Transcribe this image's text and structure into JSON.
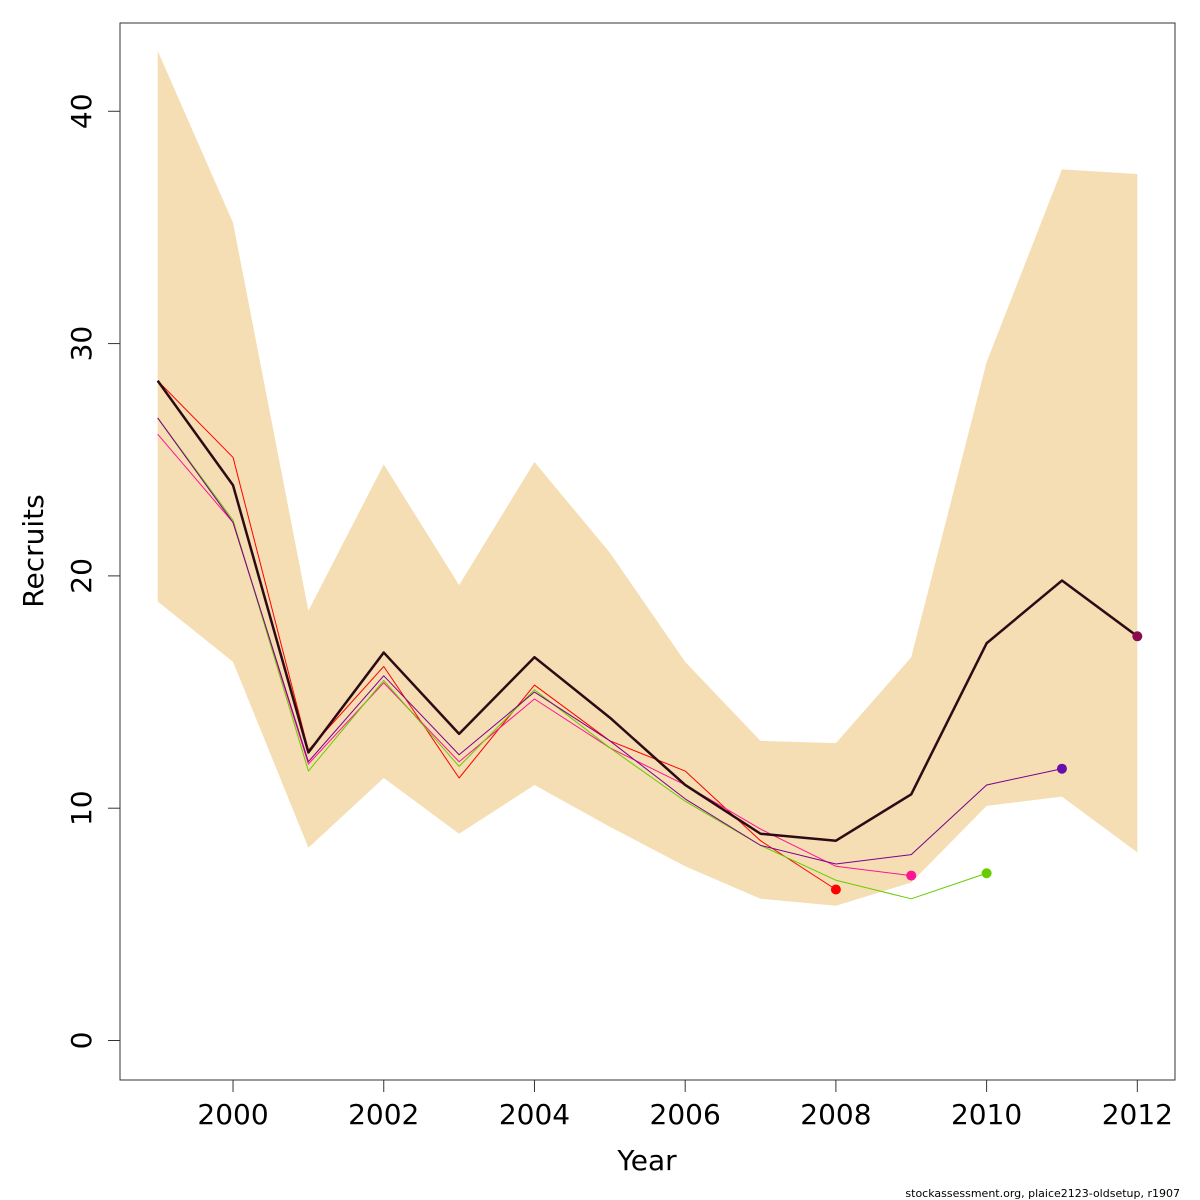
{
  "chart_data": {
    "type": "line",
    "xlabel": "Year",
    "ylabel": "Recruits",
    "footer": "stockassessment.org, plaice2123-oldsetup, r1907",
    "xlim": [
      1998.5,
      2012.5
    ],
    "ylim": [
      -1.7,
      43.8
    ],
    "x_ticks": [
      2000,
      2002,
      2004,
      2006,
      2008,
      2010,
      2012
    ],
    "y_ticks": [
      0,
      10,
      20,
      30,
      40
    ],
    "grid": false,
    "band": {
      "color": "#F5DEB3",
      "x": [
        1999,
        2000,
        2001,
        2002,
        2003,
        2004,
        2005,
        2006,
        2007,
        2008,
        2009,
        2010,
        2011,
        2012
      ],
      "upper": [
        42.6,
        35.2,
        18.5,
        24.8,
        19.6,
        24.9,
        21.0,
        16.3,
        12.9,
        12.8,
        16.5,
        29.2,
        37.5,
        37.3
      ],
      "lower": [
        18.9,
        16.3,
        8.3,
        11.3,
        8.9,
        11.0,
        9.2,
        7.5,
        6.1,
        5.8,
        6.8,
        10.1,
        10.5,
        8.1
      ]
    },
    "series": [
      {
        "color": "#FF0000",
        "width": 1,
        "x": [
          1999,
          2000,
          2001,
          2002,
          2003,
          2004,
          2005,
          2006,
          2007,
          2008
        ],
        "values": [
          28.4,
          25.1,
          12.5,
          16.1,
          11.3,
          15.3,
          12.9,
          11.6,
          8.6,
          6.5
        ]
      },
      {
        "color": "#FF1493",
        "width": 1,
        "x": [
          1999,
          2000,
          2001,
          2002,
          2003,
          2004,
          2005,
          2006,
          2007,
          2008,
          2009
        ],
        "values": [
          26.1,
          22.3,
          11.9,
          15.4,
          12.0,
          14.7,
          12.6,
          11.0,
          9.1,
          7.5,
          7.1
        ]
      },
      {
        "color": "#66CC00",
        "width": 1,
        "x": [
          1999,
          2000,
          2001,
          2002,
          2003,
          2004,
          2005,
          2006,
          2007,
          2008,
          2009,
          2010
        ],
        "values": [
          26.8,
          22.4,
          11.6,
          15.5,
          11.8,
          15.1,
          12.6,
          10.3,
          8.4,
          6.9,
          6.1,
          7.2
        ]
      },
      {
        "color": "#7B008C",
        "width": 1,
        "x": [
          1999,
          2000,
          2001,
          2002,
          2003,
          2004,
          2005,
          2006,
          2007,
          2008,
          2009,
          2010,
          2011
        ],
        "values": [
          26.8,
          22.3,
          12.0,
          15.7,
          12.3,
          15.0,
          12.9,
          10.4,
          8.4,
          7.6,
          8.0,
          11.0,
          11.7
        ]
      },
      {
        "color": "#2D0A14",
        "width": 2.5,
        "x": [
          1999,
          2000,
          2001,
          2002,
          2003,
          2004,
          2005,
          2006,
          2007,
          2008,
          2009,
          2010,
          2011,
          2012
        ],
        "values": [
          28.4,
          23.9,
          12.4,
          16.7,
          13.2,
          16.5,
          13.9,
          11.0,
          8.9,
          8.6,
          10.6,
          17.1,
          19.8,
          17.4
        ]
      }
    ],
    "end_points": [
      {
        "x": 2008,
        "y": 6.5,
        "color": "#FF0000"
      },
      {
        "x": 2009,
        "y": 7.1,
        "color": "#FF1493"
      },
      {
        "x": 2010,
        "y": 7.2,
        "color": "#66CC00"
      },
      {
        "x": 2011,
        "y": 11.7,
        "color": "#6A0DAD"
      },
      {
        "x": 2012,
        "y": 17.4,
        "color": "#8B0A50"
      }
    ]
  }
}
